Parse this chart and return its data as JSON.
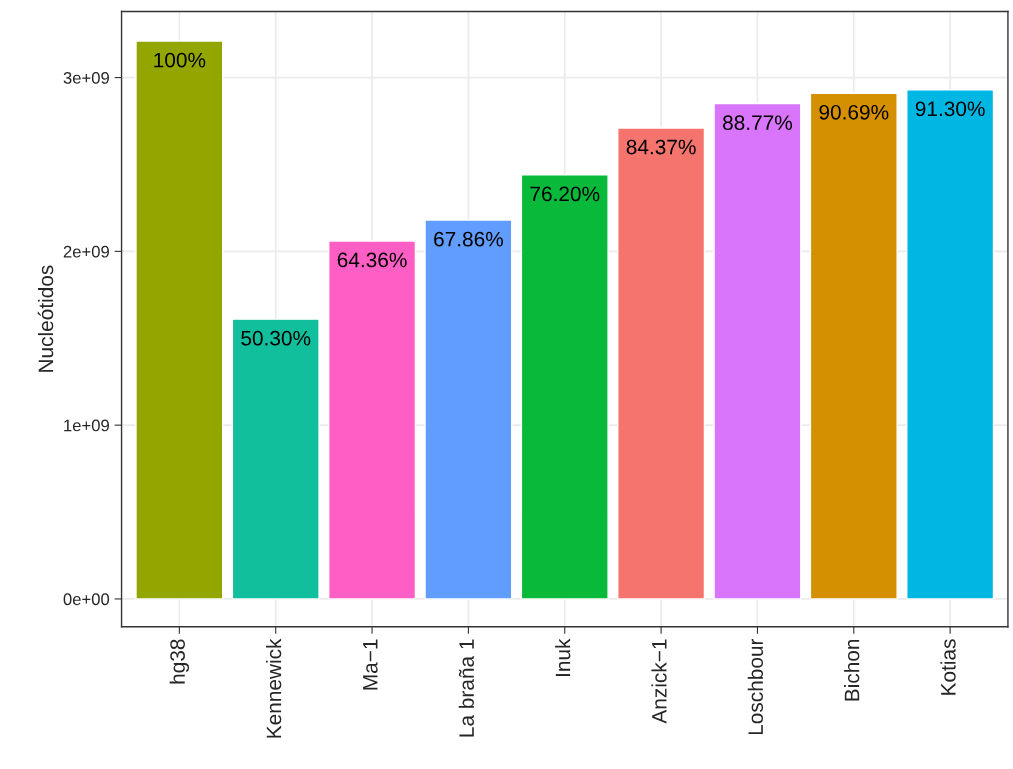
{
  "chart_data": {
    "type": "bar",
    "ylabel": "Nucleótidos",
    "categories": [
      "hg38",
      "Kennewick",
      "Ma−1",
      "La braña 1",
      "Inuk",
      "Anzick−1",
      "Loschbour",
      "Bichon",
      "Kotias"
    ],
    "values": [
      3210000000.0,
      1610000000.0,
      2060000000.0,
      2180000000.0,
      2440000000.0,
      2710000000.0,
      2850000000.0,
      2910000000.0,
      2930000000.0
    ],
    "colors": [
      "#93a600",
      "#12bf9c",
      "#ff5ec4",
      "#619cff",
      "#08b93a",
      "#f5756e",
      "#d875fb",
      "#d49000",
      "#00b7e3"
    ],
    "annotations": [
      {
        "text": "100%",
        "x": "hg38",
        "y": 3210000000.0
      },
      {
        "text": "50.30%",
        "x": "Kennewick",
        "y": 1610000000.0
      },
      {
        "text": "64.36%",
        "x": "Ma−1",
        "y": 2060000000.0
      },
      {
        "text": "67.86%",
        "x": "La braña 1",
        "y": 2180000000.0
      },
      {
        "text": "76.20%",
        "x": "Inuk",
        "y": 2440000000.0
      },
      {
        "text": "84.37%",
        "x": "Anzick−1",
        "y": 2710000000.0
      },
      {
        "text": "88.77%",
        "x": "Loschbour",
        "y": 2850000000.0
      },
      {
        "text": "90.69%",
        "x": "Bichon",
        "y": 2910000000.0
      },
      {
        "text": "91.30%",
        "x": "Kotias",
        "y": 2930000000.0
      }
    ],
    "ylim": [
      -160000000.0,
      3380000000.0
    ],
    "yticks": [
      {
        "value": 0,
        "label": "0e+00"
      },
      {
        "value": 1000000000.0,
        "label": "1e+09"
      },
      {
        "value": 2000000000.0,
        "label": "2e+09"
      },
      {
        "value": 3000000000.0,
        "label": "3e+09"
      }
    ],
    "grid": true,
    "legend": false
  }
}
